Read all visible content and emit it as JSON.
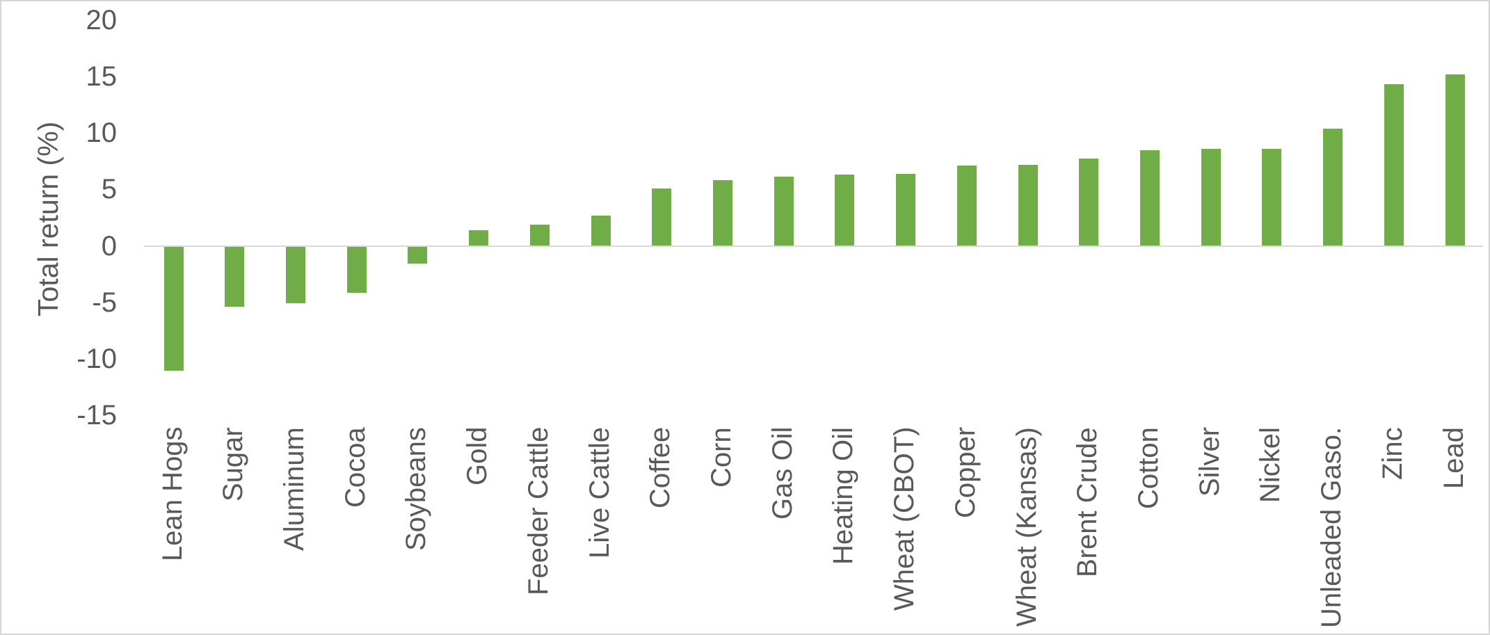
{
  "chart_data": {
    "type": "bar",
    "categories": [
      "Lean Hogs",
      "Sugar",
      "Aluminum",
      "Cocoa",
      "Soybeans",
      "Gold",
      "Feeder Cattle",
      "Live Cattle",
      "Coffee",
      "Corn",
      "Gas Oil",
      "Heating Oil",
      "Wheat (CBOT)",
      "Copper",
      "Wheat (Kansas)",
      "Brent Crude",
      "Cotton",
      "Silver",
      "Nickel",
      "Unleaded Gaso.",
      "Zinc",
      "Lead"
    ],
    "values": [
      -11.0,
      -5.3,
      -5.0,
      -4.1,
      -1.5,
      1.4,
      1.9,
      2.7,
      5.1,
      5.8,
      6.1,
      6.3,
      6.4,
      7.1,
      7.2,
      7.7,
      8.5,
      8.6,
      8.6,
      10.4,
      14.3,
      15.2
    ],
    "title": "",
    "xlabel": "",
    "ylabel": "Total return (%)",
    "ylim": [
      -15,
      20
    ],
    "ytick_labels": [
      "20",
      "15",
      "10",
      "5",
      "0",
      "-5",
      "-10",
      "-15"
    ],
    "ytick_values": [
      20,
      15,
      10,
      5,
      0,
      -5,
      -10,
      -15
    ],
    "grid": false,
    "legend": false,
    "colors": {
      "bar": "#70AD47",
      "axis_line": "#D9D9D9",
      "text": "#595959",
      "frame_border": "#D5D5D5",
      "background": "#FFFFFF"
    }
  }
}
